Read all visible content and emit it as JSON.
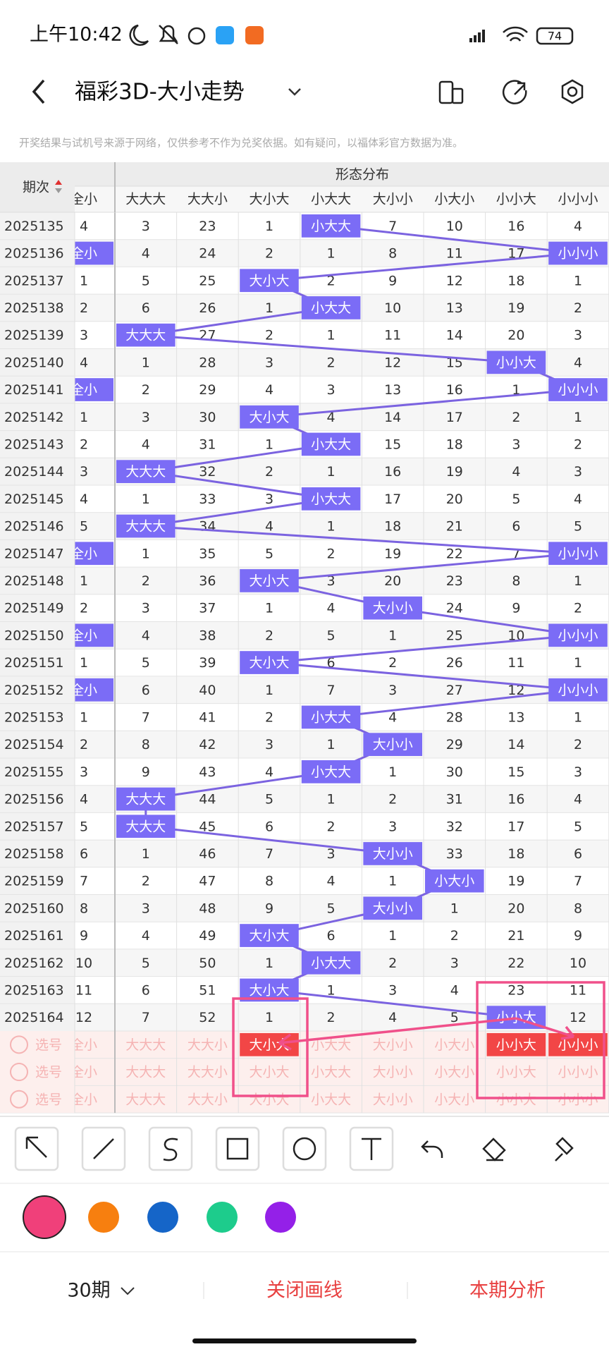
{
  "status": {
    "time": "上午10:42",
    "battery": "74"
  },
  "header": {
    "title": "福彩3D-大小走势"
  },
  "notice": "开奖结果与试机号来源于网络，仅供参考不作为兑奖依据。如有疑问，以福体彩官方数据为准。",
  "table": {
    "issue_header": "期次",
    "group_header": "形态分布",
    "columns": [
      "全小",
      "大大大",
      "大大小",
      "大小大",
      "小大大",
      "大小小",
      "小大小",
      "小小大",
      "小小小"
    ],
    "rows": [
      [
        "2025135",
        "4",
        "3",
        "23",
        "1",
        "小大大",
        "7",
        "10",
        "16",
        "4"
      ],
      [
        "2025136",
        "全小",
        "4",
        "24",
        "2",
        "1",
        "8",
        "11",
        "17",
        "小小小"
      ],
      [
        "2025137",
        "1",
        "5",
        "25",
        "大小大",
        "2",
        "9",
        "12",
        "18",
        "1"
      ],
      [
        "2025138",
        "2",
        "6",
        "26",
        "1",
        "小大大",
        "10",
        "13",
        "19",
        "2"
      ],
      [
        "2025139",
        "3",
        "大大大",
        "27",
        "2",
        "1",
        "11",
        "14",
        "20",
        "3"
      ],
      [
        "2025140",
        "4",
        "1",
        "28",
        "3",
        "2",
        "12",
        "15",
        "小小大",
        "4"
      ],
      [
        "2025141",
        "全小",
        "2",
        "29",
        "4",
        "3",
        "13",
        "16",
        "1",
        "小小小"
      ],
      [
        "2025142",
        "1",
        "3",
        "30",
        "大小大",
        "4",
        "14",
        "17",
        "2",
        "1"
      ],
      [
        "2025143",
        "2",
        "4",
        "31",
        "1",
        "小大大",
        "15",
        "18",
        "3",
        "2"
      ],
      [
        "2025144",
        "3",
        "大大大",
        "32",
        "2",
        "1",
        "16",
        "19",
        "4",
        "3"
      ],
      [
        "2025145",
        "4",
        "1",
        "33",
        "3",
        "小大大",
        "17",
        "20",
        "5",
        "4"
      ],
      [
        "2025146",
        "5",
        "大大大",
        "34",
        "4",
        "1",
        "18",
        "21",
        "6",
        "5"
      ],
      [
        "2025147",
        "全小",
        "1",
        "35",
        "5",
        "2",
        "19",
        "22",
        "7",
        "小小小"
      ],
      [
        "2025148",
        "1",
        "2",
        "36",
        "大小大",
        "3",
        "20",
        "23",
        "8",
        "1"
      ],
      [
        "2025149",
        "2",
        "3",
        "37",
        "1",
        "4",
        "大小小",
        "24",
        "9",
        "2"
      ],
      [
        "2025150",
        "全小",
        "4",
        "38",
        "2",
        "5",
        "1",
        "25",
        "10",
        "小小小"
      ],
      [
        "2025151",
        "1",
        "5",
        "39",
        "大小大",
        "6",
        "2",
        "26",
        "11",
        "1"
      ],
      [
        "2025152",
        "全小",
        "6",
        "40",
        "1",
        "7",
        "3",
        "27",
        "12",
        "小小小"
      ],
      [
        "2025153",
        "1",
        "7",
        "41",
        "2",
        "小大大",
        "4",
        "28",
        "13",
        "1"
      ],
      [
        "2025154",
        "2",
        "8",
        "42",
        "3",
        "1",
        "大小小",
        "29",
        "14",
        "2"
      ],
      [
        "2025155",
        "3",
        "9",
        "43",
        "4",
        "小大大",
        "1",
        "30",
        "15",
        "3"
      ],
      [
        "2025156",
        "4",
        "大大大",
        "44",
        "5",
        "1",
        "2",
        "31",
        "16",
        "4"
      ],
      [
        "2025157",
        "5",
        "大大大",
        "45",
        "6",
        "2",
        "3",
        "32",
        "17",
        "5"
      ],
      [
        "2025158",
        "6",
        "1",
        "46",
        "7",
        "3",
        "大小小",
        "33",
        "18",
        "6"
      ],
      [
        "2025159",
        "7",
        "2",
        "47",
        "8",
        "4",
        "1",
        "小大小",
        "19",
        "7"
      ],
      [
        "2025160",
        "8",
        "3",
        "48",
        "9",
        "5",
        "大小小",
        "1",
        "20",
        "8"
      ],
      [
        "2025161",
        "9",
        "4",
        "49",
        "大小大",
        "6",
        "1",
        "2",
        "21",
        "9"
      ],
      [
        "2025162",
        "10",
        "5",
        "50",
        "1",
        "小大大",
        "2",
        "3",
        "22",
        "10"
      ],
      [
        "2025163",
        "11",
        "6",
        "51",
        "大小大",
        "1",
        "3",
        "4",
        "23",
        "11"
      ],
      [
        "2025164",
        "12",
        "7",
        "52",
        "1",
        "2",
        "4",
        "5",
        "小小大",
        "12"
      ]
    ],
    "pick_label": "选号",
    "pick_selected": [
      [
        3,
        7,
        8
      ],
      [],
      []
    ]
  },
  "footer": {
    "period": "30期",
    "close_lines": "关闭画线",
    "analysis": "本期分析"
  }
}
